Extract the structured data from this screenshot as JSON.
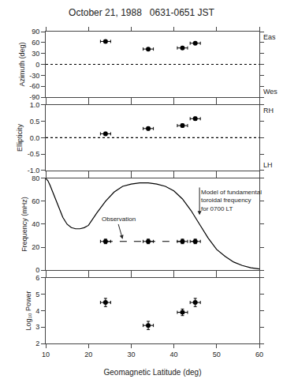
{
  "chart_data": [
    {
      "type": "scatter",
      "title": "October 21, 1988   0631-0651 JST",
      "ylabel": "Azimuth (deg)",
      "xlim": [
        10,
        60
      ],
      "xticks": [
        10,
        20,
        30,
        40,
        50,
        60
      ],
      "ylim": [
        -90,
        90
      ],
      "yticks": [
        -90,
        -60,
        -30,
        0,
        30,
        60,
        90
      ],
      "grid": false,
      "tick_labels": "y",
      "series": [
        {
          "type": "line",
          "line_style": "dotted",
          "color": "black",
          "x": [
            10,
            60
          ],
          "values": [
            0,
            0
          ]
        },
        {
          "type": "scatter",
          "marker": "circle",
          "color": "black",
          "x": [
            24,
            34,
            42,
            45
          ],
          "values": [
            63,
            42,
            45,
            58
          ],
          "xerr": [
            1.2,
            1.2,
            1.2,
            1.2
          ],
          "yerr": [
            3,
            3,
            2,
            2
          ]
        }
      ],
      "annotations": [
        {
          "text": "Eas",
          "position": "right top"
        },
        {
          "text": "Wes",
          "position": "right bottom"
        }
      ]
    },
    {
      "type": "scatter",
      "ylabel": "Ellipticity",
      "xlim": [
        10,
        60
      ],
      "xticks": [
        10,
        20,
        30,
        40,
        50,
        60
      ],
      "ylim": [
        -1.0,
        1.0
      ],
      "yticks": [
        {
          "value": -1.0,
          "label": "-1.0"
        },
        -0.5,
        {
          "value": 0.0,
          "label": "0.0"
        },
        0.5,
        {
          "value": 1.0,
          "label": "1.0"
        }
      ],
      "grid": false,
      "tick_labels": "y",
      "series": [
        {
          "type": "line",
          "line_style": "dotted",
          "color": "black",
          "x": [
            10,
            60
          ],
          "values": [
            0,
            0
          ]
        },
        {
          "type": "scatter",
          "marker": "circle",
          "color": "black",
          "x": [
            24,
            34,
            42,
            45
          ],
          "values": [
            0.12,
            0.28,
            0.37,
            0.58
          ],
          "xerr": [
            1.2,
            1.2,
            1.2,
            1.2
          ],
          "yerr": [
            0.05,
            0.05,
            0.05,
            0.05
          ]
        }
      ],
      "annotations": [
        {
          "text": "RH",
          "position": "right top"
        },
        {
          "text": "LH",
          "position": "right bottom"
        }
      ]
    },
    {
      "type": "scatter",
      "ylabel": "Frequency (mHz)",
      "xlim": [
        10,
        60
      ],
      "xticks": [
        10,
        20,
        30,
        40,
        50,
        60
      ],
      "ylim": [
        0,
        80
      ],
      "yticks": [
        0,
        20,
        40,
        60,
        80
      ],
      "grid": false,
      "tick_labels": "y",
      "series": [
        {
          "type": "line",
          "line_style": "solid",
          "color": "black",
          "x": [
            10,
            10.5,
            11,
            12,
            13,
            14,
            15,
            16,
            17,
            18,
            19,
            20,
            22,
            24,
            26,
            28,
            30,
            32,
            34,
            36,
            38,
            40,
            42,
            44,
            46,
            48,
            50,
            52,
            54,
            56,
            58,
            60
          ],
          "values": [
            80,
            78,
            74,
            65,
            55,
            46,
            40,
            37,
            36,
            36,
            37,
            39,
            50,
            60,
            68,
            73,
            75,
            76,
            76,
            75,
            73,
            69,
            62,
            52,
            40,
            28,
            18,
            12,
            7,
            4,
            2,
            1
          ]
        },
        {
          "type": "line",
          "line_style": "dashed",
          "color": "black",
          "x": [
            24,
            45
          ],
          "values": [
            25,
            25
          ]
        },
        {
          "type": "scatter",
          "marker": "circle",
          "color": "black",
          "x": [
            24,
            34,
            42,
            45
          ],
          "values": [
            25,
            25,
            25,
            25
          ],
          "xerr": [
            1.2,
            1.2,
            1.2,
            1.2
          ],
          "yerr": [
            2,
            2,
            2,
            2
          ]
        }
      ],
      "annotations": [
        {
          "text": "Model of fundamental\ntoroidal frequency\nfor 0700 LT",
          "x": 46,
          "y": 48,
          "text_x": 46,
          "text_y": 72
        },
        {
          "text": "Observation",
          "x": 28,
          "y": 27,
          "text_x": 27,
          "text_y": 40
        }
      ]
    },
    {
      "type": "scatter",
      "ylabel": "Log₁₀ Power",
      "xlabel": "Geomagnetic Latitude (deg)",
      "xlim": [
        10,
        60
      ],
      "xticks": [
        10,
        20,
        30,
        40,
        50,
        60
      ],
      "ylim": [
        2,
        6
      ],
      "yticks": [
        2,
        3,
        4,
        5,
        6
      ],
      "grid": false,
      "series": [
        {
          "type": "scatter",
          "marker": "circle",
          "color": "black",
          "x": [
            24,
            34,
            42,
            45
          ],
          "values": [
            4.5,
            3.1,
            3.9,
            4.5
          ],
          "xerr": [
            1.2,
            1.2,
            1.2,
            1.2
          ],
          "yerr": [
            0.25,
            0.25,
            0.2,
            0.25
          ]
        }
      ]
    }
  ]
}
